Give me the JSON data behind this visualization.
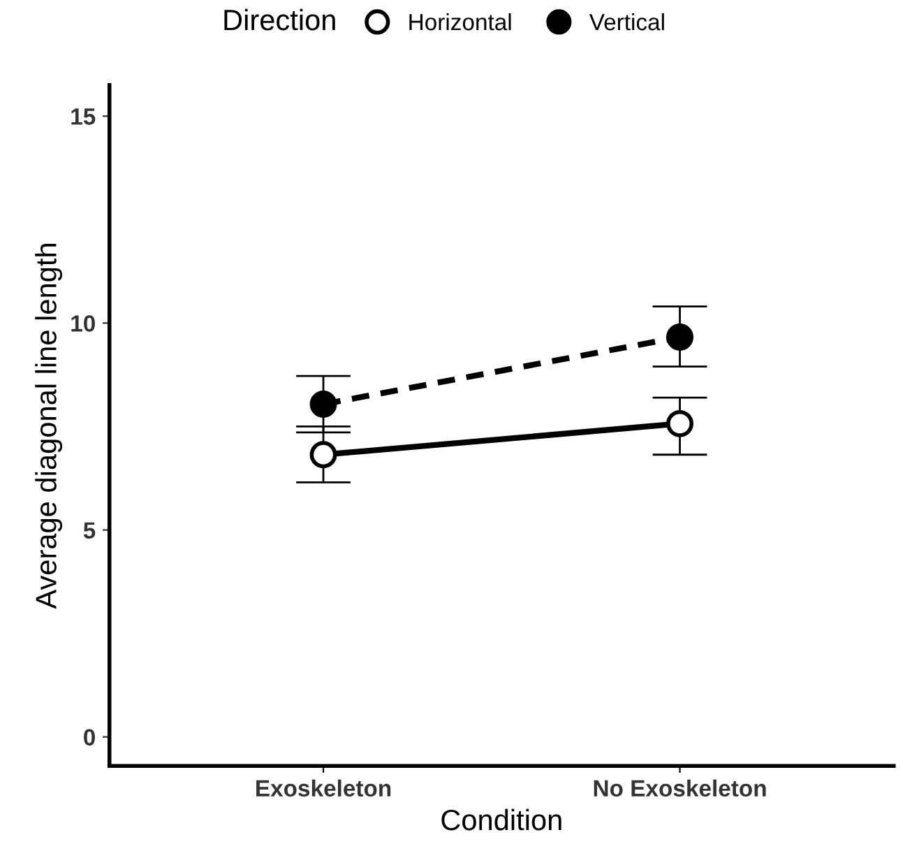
{
  "chart_data": {
    "type": "line",
    "xlabel": "Condition",
    "ylabel": "Average diagonal line length",
    "legend_title": "Direction",
    "categories": [
      "Exoskeleton",
      "No Exoskeleton"
    ],
    "series": [
      {
        "name": "Horizontal",
        "color": "#000000",
        "values": [
          6.82,
          7.57
        ],
        "errors": [
          [
            6.15,
            7.5
          ],
          [
            6.82,
            8.2
          ]
        ],
        "line_style": "solid"
      },
      {
        "name": "Vertical",
        "color": "#000000",
        "values": [
          8.04,
          9.66
        ],
        "errors": [
          [
            7.36,
            8.72
          ],
          [
            8.95,
            10.4
          ]
        ],
        "line_style": "dashed"
      }
    ],
    "ylim": [
      -0.7,
      15.75
    ],
    "yticks": [
      0,
      5,
      10,
      15
    ],
    "grid": false,
    "legend": "top",
    "marker": "circle"
  }
}
